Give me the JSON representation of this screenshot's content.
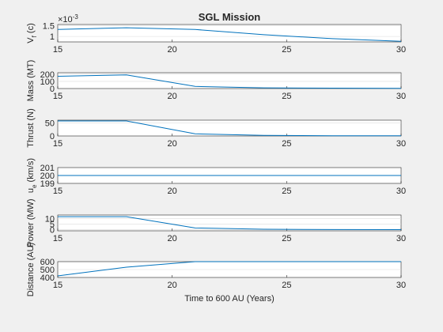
{
  "figure": {
    "title": "SGL Mission"
  },
  "chart_data": [
    {
      "type": "line",
      "ylabel": "V",
      "ylabel_sub": "f",
      "ylabel_suffix": " (c)",
      "exponent_label": "×10",
      "exponent_power": "-3",
      "x": [
        15,
        18,
        21,
        24,
        27,
        30
      ],
      "y": [
        1.32,
        1.4,
        1.32,
        1.08,
        0.9,
        0.78
      ],
      "xlim": [
        15,
        30
      ],
      "ylim": [
        0.75,
        1.55
      ],
      "xticks": [
        15,
        20,
        25,
        30
      ],
      "yticks": [
        1,
        1.5
      ],
      "ytick_labels": [
        "1",
        "1.5"
      ],
      "grid": "horizontal"
    },
    {
      "type": "line",
      "ylabel": "Mass (MT)",
      "x": [
        15,
        18,
        21,
        24,
        27,
        30
      ],
      "y": [
        170,
        190,
        30,
        10,
        5,
        3
      ],
      "xlim": [
        15,
        30
      ],
      "ylim": [
        0,
        220
      ],
      "xticks": [
        15,
        20,
        25,
        30
      ],
      "yticks": [
        0,
        100,
        200
      ],
      "ytick_labels": [
        "0",
        "100",
        "200"
      ],
      "grid": "horizontal"
    },
    {
      "type": "line",
      "ylabel": "Thrust (N)",
      "x": [
        15,
        18,
        21,
        24,
        27,
        30
      ],
      "y": [
        57,
        57,
        8,
        2,
        1,
        1
      ],
      "xlim": [
        15,
        30
      ],
      "ylim": [
        0,
        60
      ],
      "xticks": [
        15,
        20,
        25,
        30
      ],
      "yticks": [
        0,
        50
      ],
      "ytick_labels": [
        "0",
        "50"
      ],
      "grid": "horizontal"
    },
    {
      "type": "line",
      "ylabel": "u",
      "ylabel_sub": "e",
      "ylabel_suffix": " (km/s)",
      "x": [
        15,
        30
      ],
      "y": [
        200,
        200
      ],
      "xlim": [
        15,
        30
      ],
      "ylim": [
        199,
        201
      ],
      "xticks": [
        15,
        20,
        25,
        30
      ],
      "yticks": [
        199,
        200,
        201
      ],
      "ytick_labels": [
        "199",
        "200",
        "201"
      ],
      "grid": "horizontal"
    },
    {
      "type": "line",
      "ylabel": "Power (MW)",
      "x": [
        15,
        18,
        21,
        24,
        27,
        30
      ],
      "y": [
        11.5,
        11.5,
        1.5,
        0.4,
        0.1,
        0.05
      ],
      "xlim": [
        15,
        30
      ],
      "ylim": [
        -1,
        13
      ],
      "xticks": [
        15,
        20,
        25,
        30
      ],
      "yticks": [
        0,
        5,
        10
      ],
      "ytick_labels": [
        "0",
        "5",
        "10"
      ],
      "grid": "horizontal"
    },
    {
      "type": "line",
      "ylabel": "Distance (AU)",
      "xlabel": "Time to 600 AU (Years)",
      "x": [
        15,
        18,
        21,
        24,
        27,
        30
      ],
      "y": [
        420,
        530,
        600,
        600,
        600,
        600
      ],
      "xlim": [
        15,
        30
      ],
      "ylim": [
        400,
        600
      ],
      "xticks": [
        15,
        20,
        25,
        30
      ],
      "yticks": [
        400,
        500,
        600
      ],
      "ytick_labels": [
        "400",
        "500",
        "600"
      ],
      "grid": "horizontal"
    }
  ],
  "colors": {
    "series": "#0072bd",
    "axes": "#262626",
    "background": "#f0f0f0",
    "grid": "#dcdcdc"
  }
}
